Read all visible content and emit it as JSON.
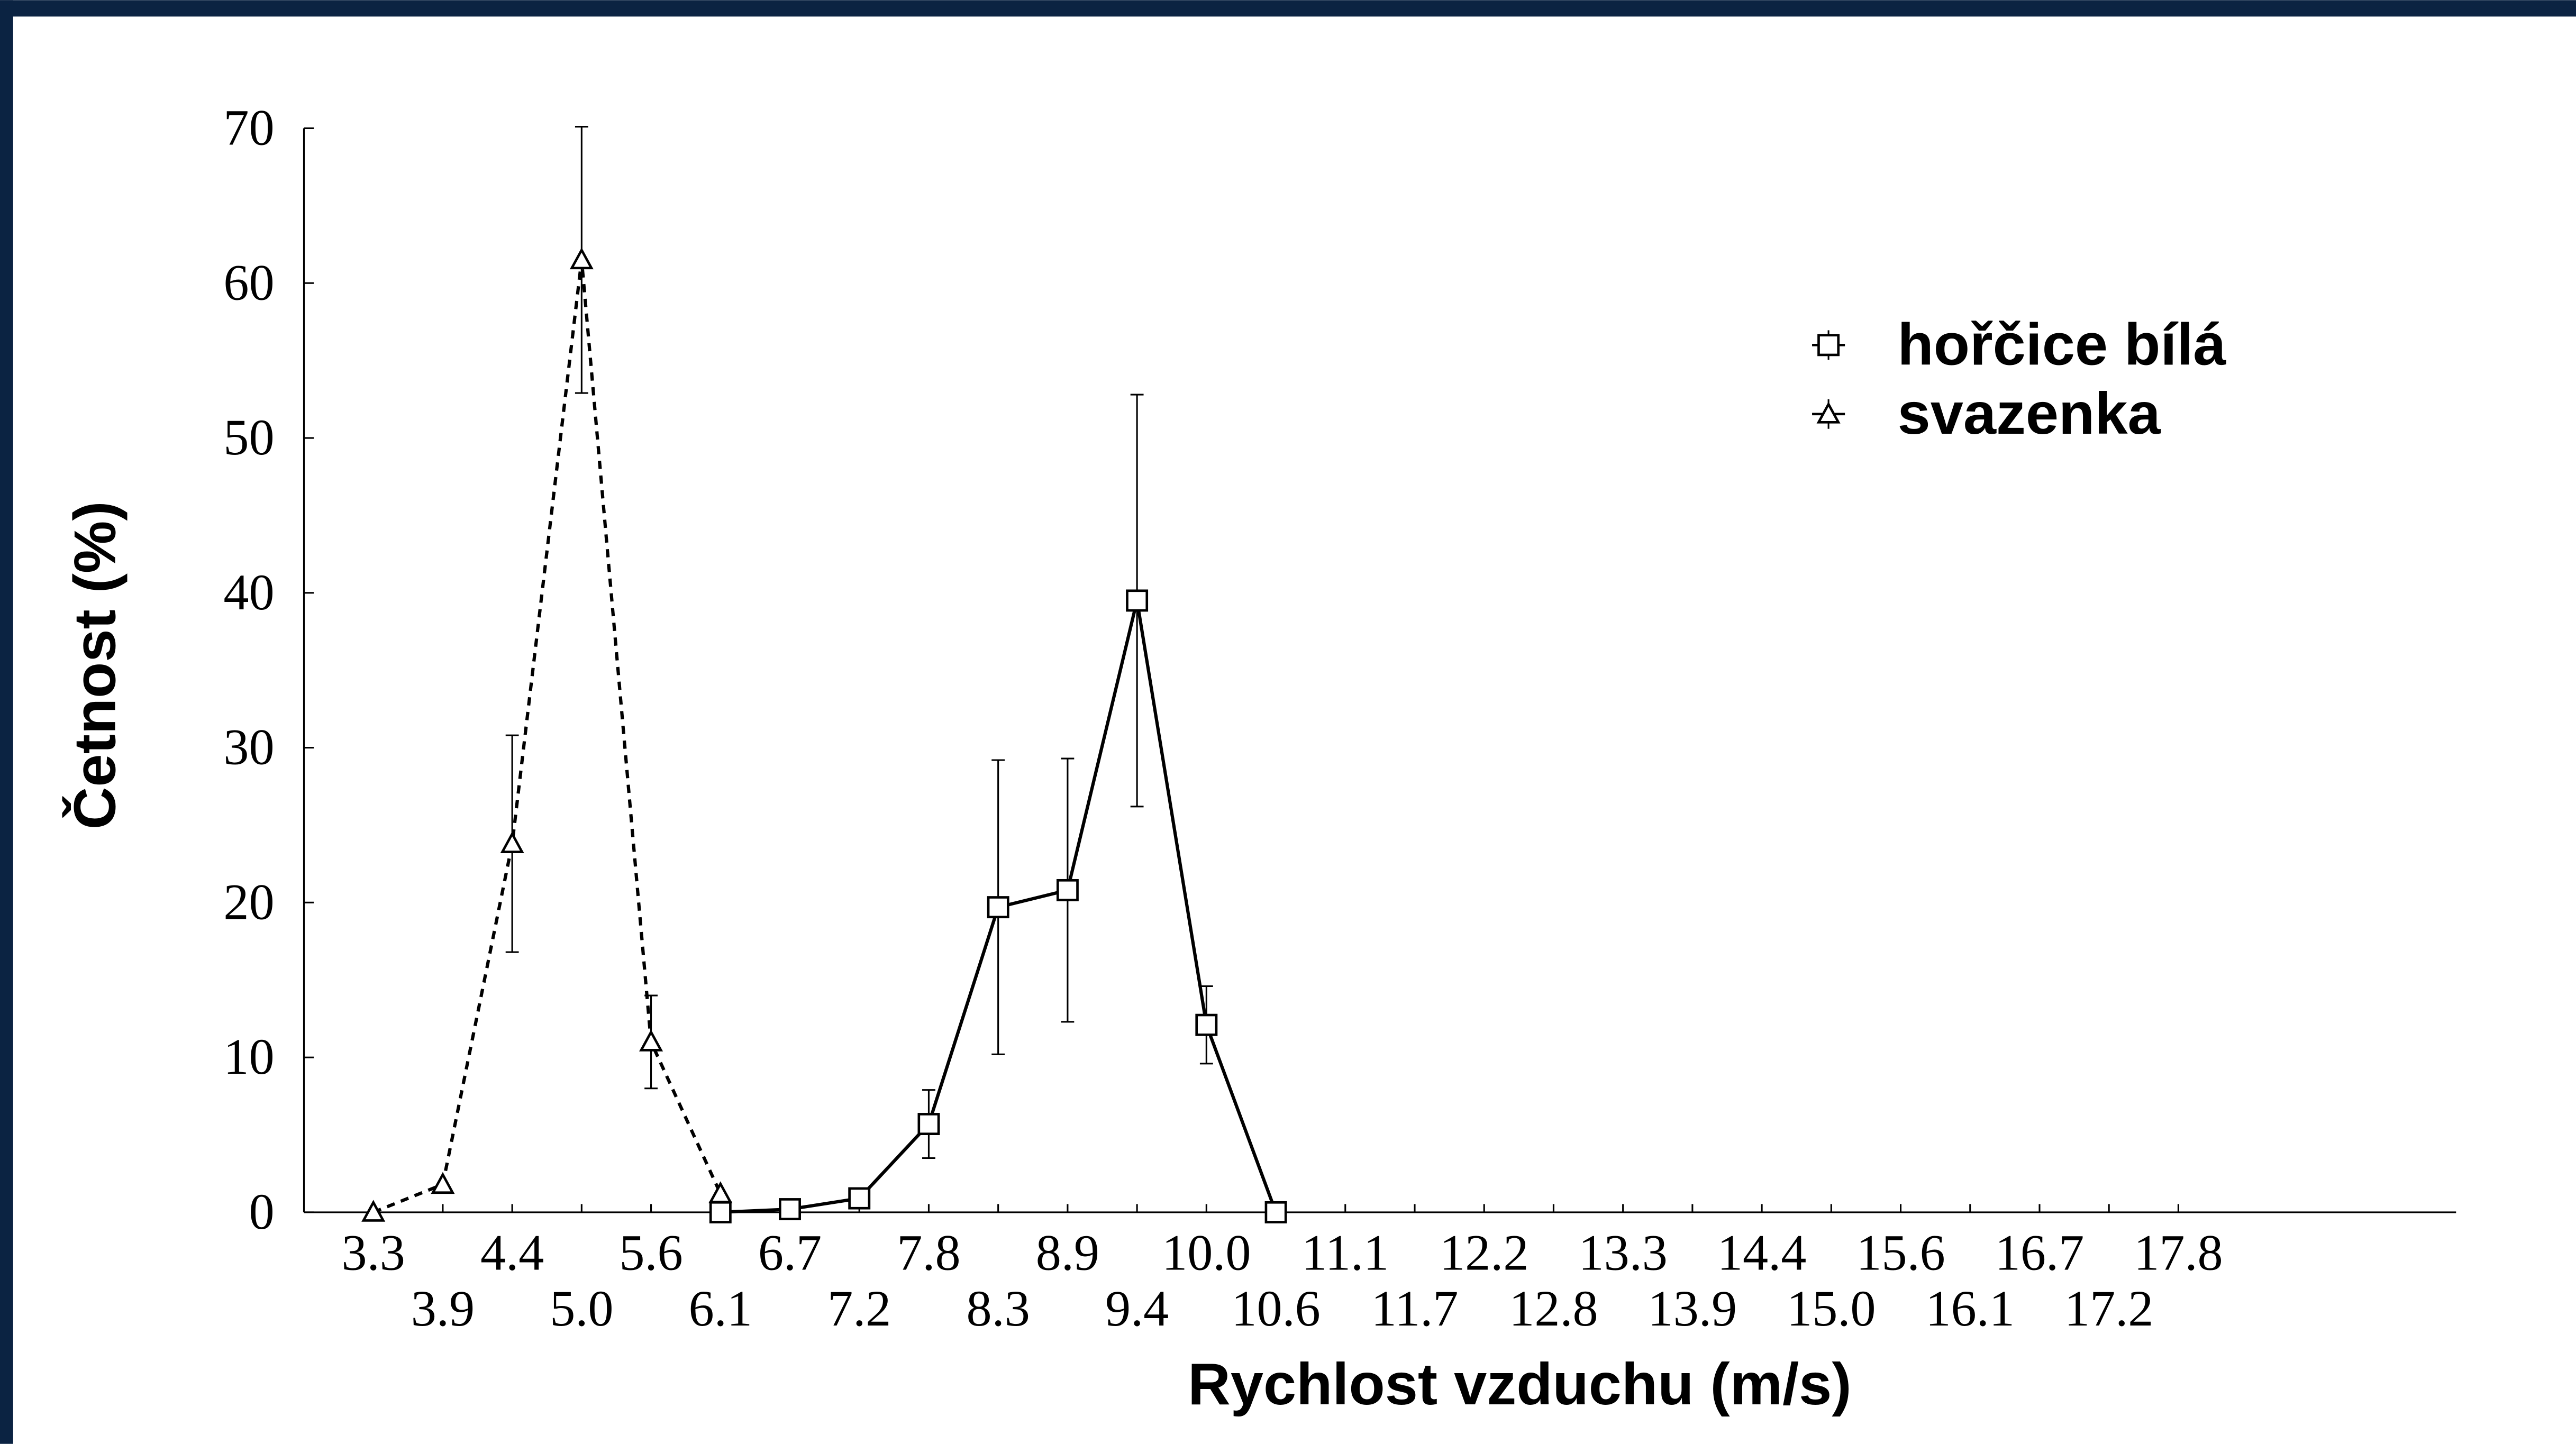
{
  "chart_data": {
    "type": "line",
    "x_label": "Rychlost vzduchu (m/s)",
    "y_label": "Četnost (%)",
    "categories": [
      "3.3",
      "3.9",
      "4.4",
      "5.0",
      "5.6",
      "6.1",
      "6.7",
      "7.2",
      "7.8",
      "8.3",
      "8.9",
      "9.4",
      "10.0",
      "10.6",
      "11.1",
      "11.7",
      "12.2",
      "12.8",
      "13.3",
      "13.9",
      "14.4",
      "15.0",
      "15.6",
      "16.1",
      "16.7",
      "17.2",
      "17.8",
      null,
      null,
      null
    ],
    "ylim": [
      0,
      70
    ],
    "yticks": [
      0,
      10,
      20,
      30,
      40,
      50,
      60,
      70
    ],
    "legend": "upper right",
    "series": [
      {
        "name": "hořčice bílá",
        "color": "#000000",
        "marker": "square",
        "dash": "solid",
        "values": [
          null,
          null,
          null,
          null,
          null,
          0,
          0.2,
          0.9,
          5.7,
          19.7,
          20.8,
          39.5,
          12.1,
          0,
          null,
          null,
          null,
          null,
          null,
          null,
          null,
          null,
          null,
          null,
          null,
          null,
          null,
          null,
          null,
          null
        ],
        "errors": [
          null,
          null,
          null,
          null,
          null,
          0,
          0,
          0.5,
          2.2,
          9.5,
          8.5,
          13.3,
          2.5,
          0,
          null,
          null,
          null,
          null,
          null,
          null,
          null,
          null,
          null,
          null,
          null,
          null,
          null,
          null,
          null,
          null
        ]
      },
      {
        "name": "svazenka",
        "color": "#000000",
        "marker": "triangle",
        "dash": "dashed",
        "values": [
          0,
          1.8,
          23.8,
          61.5,
          11,
          1.2,
          null,
          null,
          null,
          null,
          null,
          null,
          null,
          null,
          null,
          null,
          null,
          null,
          null,
          null,
          null,
          null,
          null,
          null,
          null,
          null,
          null,
          null,
          null,
          null
        ],
        "errors": [
          0,
          0,
          7,
          8.6,
          3,
          0,
          null,
          null,
          null,
          null,
          null,
          null,
          null,
          null,
          null,
          null,
          null,
          null,
          null,
          null,
          null,
          null,
          null,
          null,
          null,
          null,
          null,
          null,
          null,
          null
        ]
      }
    ]
  }
}
